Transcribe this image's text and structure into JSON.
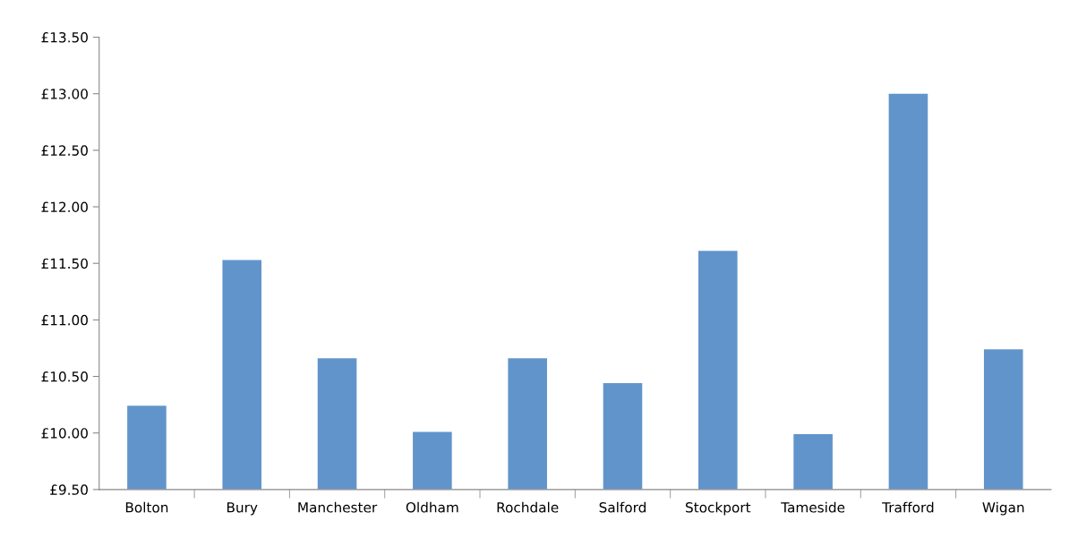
{
  "chart_data": {
    "type": "bar",
    "categories": [
      "Bolton",
      "Bury",
      "Manchester",
      "Oldham",
      "Rochdale",
      "Salford",
      "Stockport",
      "Tameside",
      "Trafford",
      "Wigan"
    ],
    "values": [
      10.24,
      11.53,
      10.66,
      10.01,
      10.66,
      10.44,
      11.61,
      9.99,
      13.0,
      10.74
    ],
    "color": "#6194cb",
    "ylim": [
      9.5,
      13.5
    ],
    "yticks": [
      {
        "value": 9.5,
        "label": "£9.50"
      },
      {
        "value": 10.0,
        "label": "£10.00"
      },
      {
        "value": 10.5,
        "label": "£10.50"
      },
      {
        "value": 11.0,
        "label": "£11.00"
      },
      {
        "value": 11.5,
        "label": "£11.50"
      },
      {
        "value": 12.0,
        "label": "£12.00"
      },
      {
        "value": 12.5,
        "label": "£12.50"
      },
      {
        "value": 13.0,
        "label": "£13.00"
      },
      {
        "value": 13.5,
        "label": "£13.50"
      }
    ],
    "grid": false
  }
}
